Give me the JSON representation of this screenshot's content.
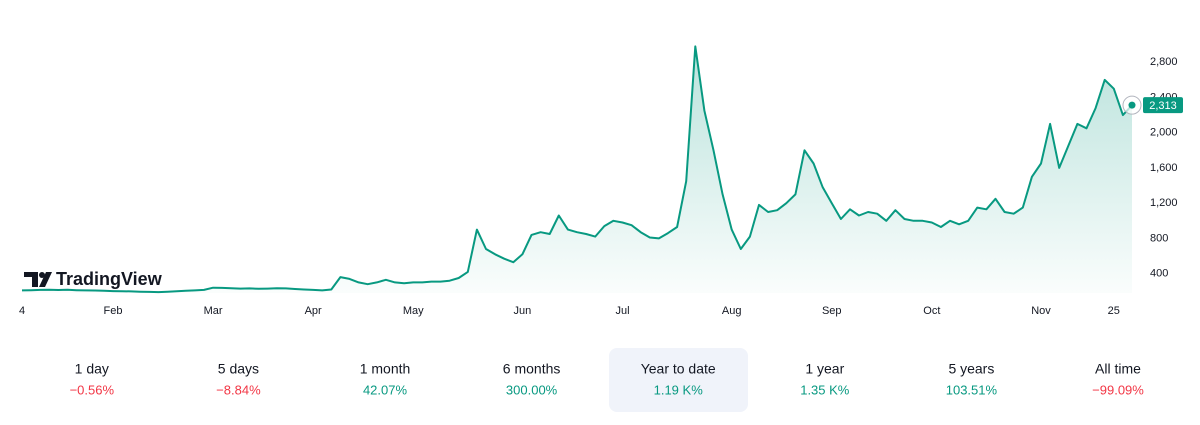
{
  "brand": "TradingView",
  "chart_data": {
    "type": "area",
    "color": "#089981",
    "categories": [
      "4",
      null,
      null,
      null,
      null,
      null,
      null,
      null,
      null,
      null,
      "Feb",
      null,
      null,
      null,
      null,
      null,
      null,
      null,
      null,
      null,
      null,
      "Mar",
      null,
      null,
      null,
      null,
      null,
      null,
      null,
      null,
      null,
      null,
      "Apr",
      null,
      null,
      null,
      null,
      null,
      null,
      null,
      null,
      null,
      null,
      "May",
      null,
      null,
      null,
      null,
      null,
      null,
      null,
      null,
      null,
      null,
      null,
      "Jun",
      null,
      null,
      null,
      null,
      null,
      null,
      null,
      null,
      null,
      null,
      "Jul",
      null,
      null,
      null,
      null,
      null,
      null,
      null,
      null,
      null,
      null,
      null,
      "Aug",
      null,
      null,
      null,
      null,
      null,
      null,
      null,
      null,
      null,
      null,
      "Sep",
      null,
      null,
      null,
      null,
      null,
      null,
      null,
      null,
      null,
      null,
      "Oct",
      null,
      null,
      null,
      null,
      null,
      null,
      null,
      null,
      null,
      null,
      null,
      "Nov",
      null,
      null,
      null,
      null,
      null,
      null,
      null,
      "25",
      null,
      null
    ],
    "values": [
      210,
      212,
      215,
      218,
      214,
      216,
      212,
      210,
      208,
      205,
      202,
      200,
      198,
      195,
      192,
      190,
      195,
      200,
      205,
      210,
      215,
      240,
      238,
      235,
      230,
      232,
      228,
      230,
      235,
      232,
      225,
      220,
      215,
      210,
      220,
      360,
      340,
      300,
      280,
      300,
      330,
      300,
      290,
      300,
      300,
      310,
      310,
      320,
      350,
      420,
      900,
      680,
      620,
      570,
      530,
      620,
      840,
      870,
      850,
      1060,
      900,
      870,
      850,
      820,
      940,
      1000,
      980,
      950,
      870,
      810,
      800,
      860,
      930,
      1450,
      2980,
      2250,
      1800,
      1300,
      900,
      680,
      820,
      1180,
      1100,
      1120,
      1200,
      1300,
      1800,
      1650,
      1380,
      1200,
      1020,
      1130,
      1060,
      1100,
      1080,
      1000,
      1120,
      1020,
      1000,
      1000,
      980,
      930,
      1000,
      960,
      1000,
      1150,
      1130,
      1250,
      1100,
      1080,
      1150,
      1500,
      1650,
      2100,
      1600,
      1850,
      2100,
      2050,
      2280,
      2600,
      2500,
      2200,
      2313
    ],
    "value_labels": [
      null,
      null,
      null,
      null,
      null,
      null,
      null,
      null,
      null,
      null,
      null,
      null,
      null,
      null,
      null,
      null,
      null,
      null,
      null,
      null,
      null,
      null,
      null,
      null,
      null,
      null,
      null,
      null,
      null,
      null,
      null,
      null,
      null,
      null,
      null,
      null,
      null,
      null,
      null,
      null,
      null,
      null,
      null,
      null,
      null,
      null,
      null,
      null,
      null,
      null,
      null,
      null,
      null,
      null,
      null,
      null,
      null,
      null,
      null,
      null,
      null,
      null,
      null,
      null,
      null,
      null,
      null,
      null,
      null,
      null,
      null,
      null,
      null,
      null,
      null,
      null,
      null,
      null,
      null,
      null,
      null,
      null,
      null,
      null,
      null,
      null,
      null,
      null,
      null,
      null,
      null,
      null,
      null,
      null,
      null,
      null,
      null,
      null,
      null,
      null,
      null,
      null,
      null,
      null,
      null,
      null,
      null,
      null,
      null,
      null,
      null,
      null,
      null,
      null,
      null,
      null,
      null,
      null,
      null,
      null,
      null,
      null,
      "2,313"
    ],
    "ylim": [
      180,
      3280
    ],
    "yticks": [
      400,
      800,
      {
        "value": 1200,
        "label": "1,200"
      },
      {
        "value": 1600,
        "label": "1,600"
      },
      {
        "value": 2000,
        "label": "2,000"
      },
      {
        "value": 2400,
        "label": "2,400"
      },
      {
        "value": 2800,
        "label": "2,800"
      }
    ],
    "grid": false
  },
  "periods": [
    {
      "label": "1 day",
      "change": "−0.56%"
    },
    {
      "label": "5 days",
      "change": "−8.84%"
    },
    {
      "label": "1 month",
      "change": "42.07%"
    },
    {
      "label": "6 months",
      "change": "300.00%"
    },
    {
      "label": "Year to date",
      "change": "1.19 K%"
    },
    {
      "label": "1 year",
      "change": "1.35 K%"
    },
    {
      "label": "5 years",
      "change": "103.51%"
    },
    {
      "label": "All time",
      "change": "−99.09%"
    }
  ],
  "selected_period": 4
}
